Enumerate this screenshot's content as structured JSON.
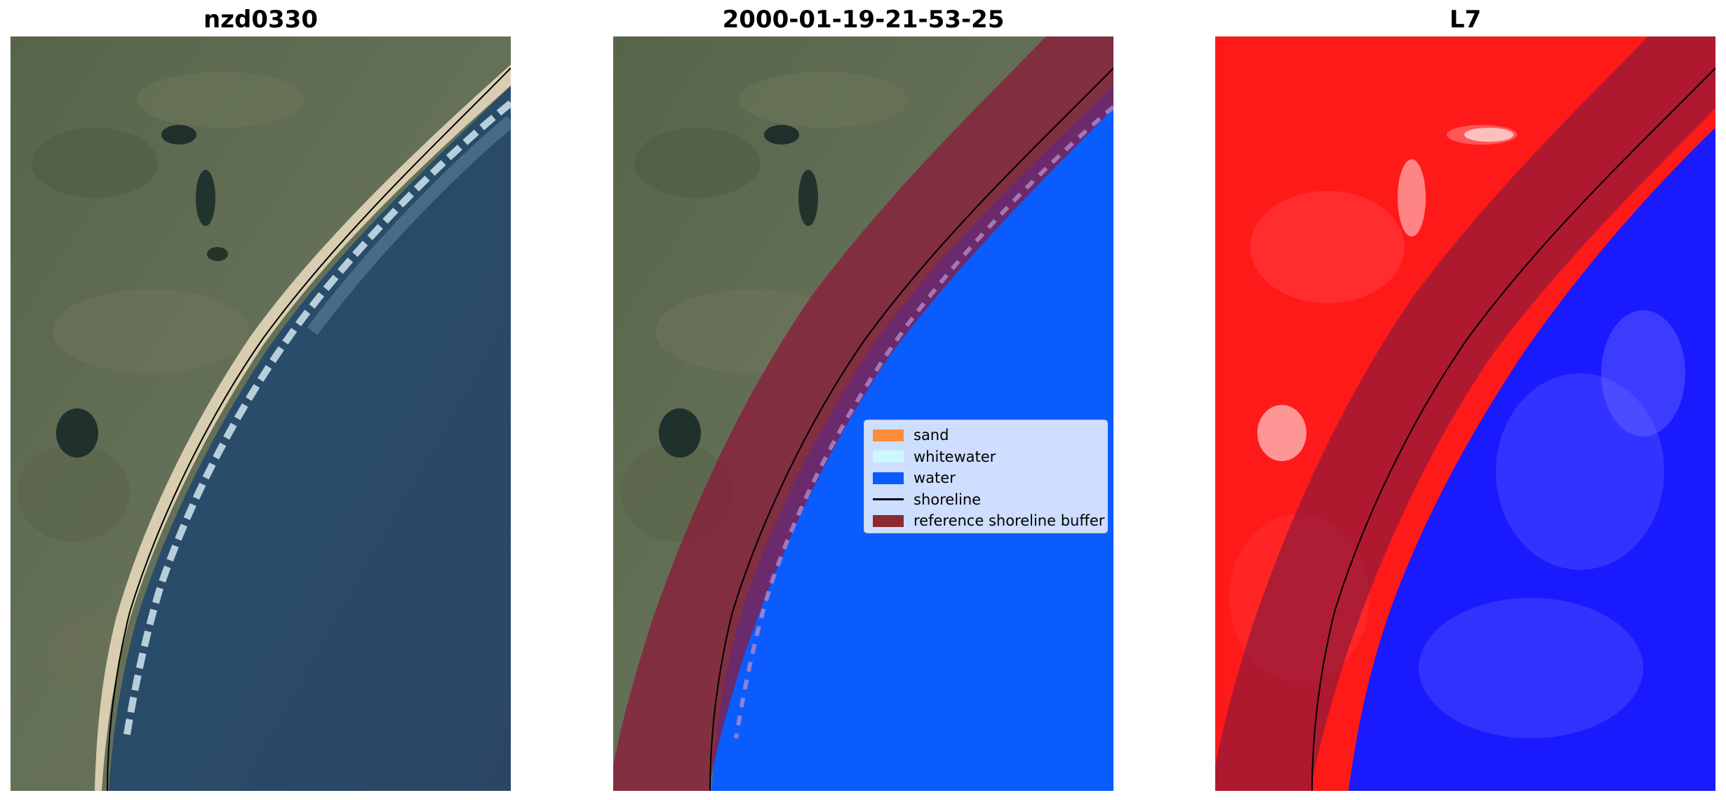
{
  "panels": [
    {
      "title": "nzd0330"
    },
    {
      "title": "2000-01-19-21-53-25"
    },
    {
      "title": "L7"
    }
  ],
  "legend": {
    "placement": "center-right of middle panel",
    "items": [
      {
        "label": "sand",
        "color": "#ff8c3a",
        "kind": "patch"
      },
      {
        "label": "whitewater",
        "color": "#ccf9ff",
        "kind": "patch"
      },
      {
        "label": "water",
        "color": "#0a5cff",
        "kind": "patch"
      },
      {
        "label": "shoreline",
        "color": "#000000",
        "kind": "line"
      },
      {
        "label": "reference shoreline buffer",
        "color": "#8b2a2f",
        "kind": "patch"
      }
    ]
  },
  "colors": {
    "land_rgb": "#5c6a4e",
    "sea_rgb": "#2a4d6e",
    "beach_sand": "#d9cfb4",
    "classified_water": "#0a5cff",
    "buffer_overlay": "#8b1a3a",
    "index_land": "#ff1a1a",
    "index_water": "#1a1aff"
  }
}
